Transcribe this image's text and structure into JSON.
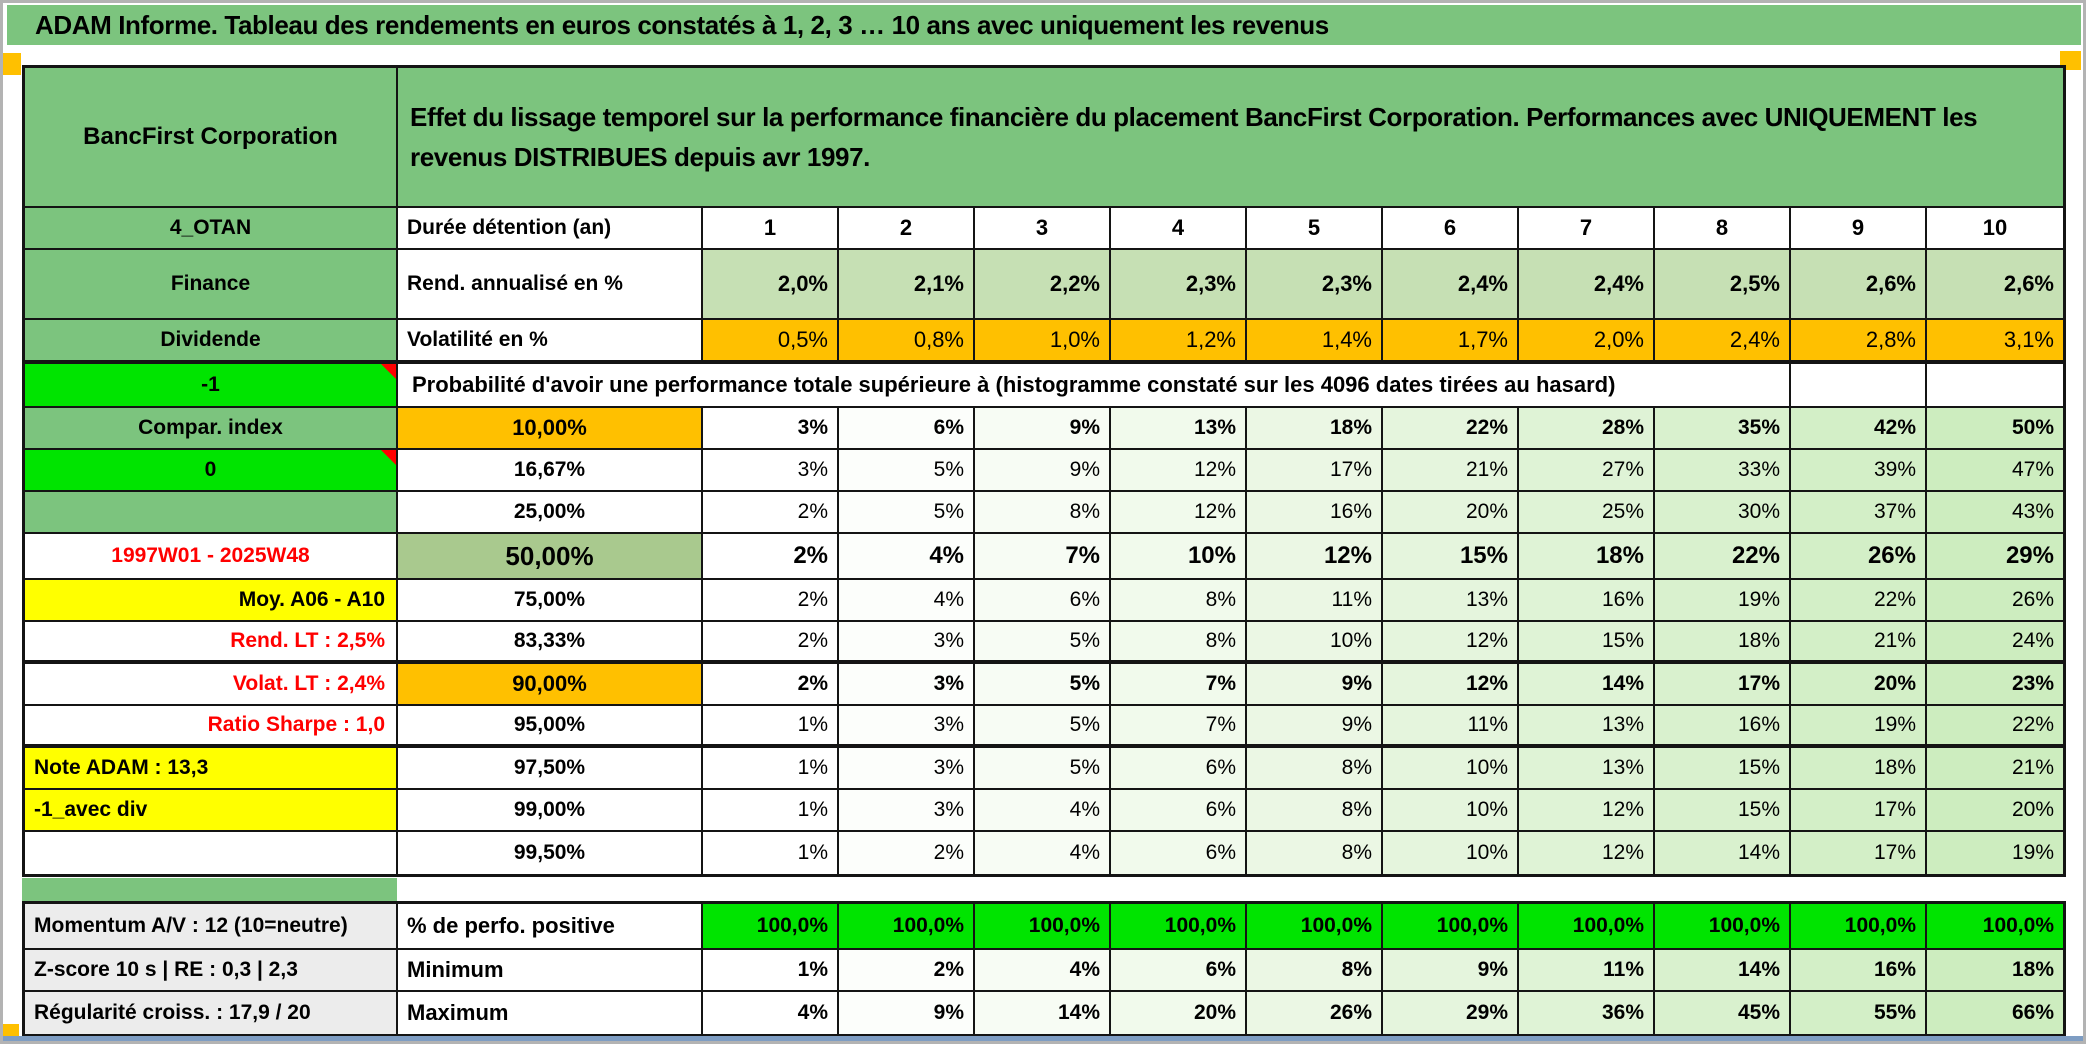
{
  "window": {
    "title": "ADAM Informe. Tableau des rendements en euros constatés à 1, 2, 3 … 10 ans avec uniquement les revenus"
  },
  "header": {
    "company": "BancFirst Corporation",
    "description": "Effet du lissage temporel sur la performance financière du placement BancFirst Corporation. Performances avec UNIQUEMENT les revenus DISTRIBUES depuis avr 1997."
  },
  "colors": {
    "header_green": "#7CC47E",
    "bright_green": "#00E400",
    "orange": "#FFC000",
    "yellow": "#FFFF00",
    "sage_green": "#A9C98E",
    "light_green": "#C6E0B4",
    "label_gray": "#ECECEC",
    "red_text": "#FF0000"
  },
  "table": {
    "duration_row": {
      "label": "4_OTAN",
      "param": "Durée détention (an)",
      "values": [
        "1",
        "2",
        "3",
        "4",
        "5",
        "6",
        "7",
        "8",
        "9",
        "10"
      ]
    },
    "yield_row": {
      "label": "Finance",
      "param": "Rend. annualisé en %",
      "values": [
        "2,0%",
        "2,1%",
        "2,2%",
        "2,3%",
        "2,3%",
        "2,4%",
        "2,4%",
        "2,5%",
        "2,6%",
        "2,6%"
      ]
    },
    "volatility_row": {
      "label": "Dividende",
      "param": "Volatilité en %",
      "values": [
        "0,5%",
        "0,8%",
        "1,0%",
        "1,2%",
        "1,4%",
        "1,7%",
        "2,0%",
        "2,4%",
        "2,8%",
        "3,1%"
      ]
    },
    "probability_banner": {
      "label": "-1",
      "has_note": true,
      "text": "Probabilité d'avoir une performance totale supérieure à (histogramme constaté sur les 4096 dates tirées au hasard)"
    },
    "probability_rows": [
      {
        "label": "Compar. index",
        "label_style": "green",
        "threshold": "10,00%",
        "threshold_style": "orange",
        "values_bold": true,
        "values": [
          "3%",
          "6%",
          "9%",
          "13%",
          "18%",
          "22%",
          "28%",
          "35%",
          "42%",
          "50%"
        ]
      },
      {
        "label": "0",
        "label_style": "bright",
        "has_note": true,
        "threshold": "16,67%",
        "values": [
          "3%",
          "5%",
          "9%",
          "12%",
          "17%",
          "21%",
          "27%",
          "33%",
          "39%",
          "47%"
        ]
      },
      {
        "label": "",
        "label_style": "green",
        "threshold": "25,00%",
        "values": [
          "2%",
          "5%",
          "8%",
          "12%",
          "16%",
          "20%",
          "25%",
          "30%",
          "37%",
          "43%"
        ]
      },
      {
        "label": "1997W01 - 2025W48",
        "label_style": "red-center",
        "threshold": "50,00%",
        "threshold_style": "sage",
        "values_bold": true,
        "big": true,
        "values": [
          "2%",
          "4%",
          "7%",
          "10%",
          "12%",
          "15%",
          "18%",
          "22%",
          "26%",
          "29%"
        ]
      },
      {
        "label": "Moy. A06 - A10",
        "label_style": "yellow-right",
        "threshold": "75,00%",
        "values": [
          "2%",
          "4%",
          "6%",
          "8%",
          "11%",
          "13%",
          "16%",
          "19%",
          "22%",
          "26%"
        ]
      },
      {
        "label": "Rend. LT :  2,5%",
        "label_style": "red-right",
        "threshold": "83,33%",
        "thick_bottom": true,
        "values": [
          "2%",
          "3%",
          "5%",
          "8%",
          "10%",
          "12%",
          "15%",
          "18%",
          "21%",
          "24%"
        ]
      },
      {
        "label": "Volat. LT :  2,4%",
        "label_style": "red-right",
        "threshold": "90,00%",
        "threshold_style": "orange",
        "values_bold": true,
        "values": [
          "2%",
          "3%",
          "5%",
          "7%",
          "9%",
          "12%",
          "14%",
          "17%",
          "20%",
          "23%"
        ]
      },
      {
        "label": "Ratio Sharpe :  1,0",
        "label_style": "red-right",
        "threshold": "95,00%",
        "thick_bottom": true,
        "values": [
          "1%",
          "3%",
          "5%",
          "7%",
          "9%",
          "11%",
          "13%",
          "16%",
          "19%",
          "22%"
        ]
      },
      {
        "label": "Note ADAM : 13,3",
        "label_style": "yellow-left",
        "threshold": "97,50%",
        "values": [
          "1%",
          "3%",
          "5%",
          "6%",
          "8%",
          "10%",
          "13%",
          "15%",
          "18%",
          "21%"
        ]
      },
      {
        "label": "-1_avec div",
        "label_style": "yellow-left",
        "threshold": "99,00%",
        "values": [
          "1%",
          "3%",
          "4%",
          "6%",
          "8%",
          "10%",
          "12%",
          "15%",
          "17%",
          "20%"
        ]
      },
      {
        "label": "",
        "label_style": "white",
        "threshold": "99,50%",
        "values": [
          "1%",
          "2%",
          "4%",
          "6%",
          "8%",
          "10%",
          "12%",
          "14%",
          "17%",
          "19%"
        ]
      }
    ],
    "summary_rows": [
      {
        "label": "Momentum A/V : 12 (10=neutre)",
        "param": "% de perfo. positive",
        "values_style": "bright",
        "values_bold": true,
        "values": [
          "100,0%",
          "100,0%",
          "100,0%",
          "100,0%",
          "100,0%",
          "100,0%",
          "100,0%",
          "100,0%",
          "100,0%",
          "100,0%"
        ]
      },
      {
        "label": "Z-score 10 s | RE : 0,3 | 2,3",
        "param": "Minimum",
        "values_bold": true,
        "values": [
          "1%",
          "2%",
          "4%",
          "6%",
          "8%",
          "9%",
          "11%",
          "14%",
          "16%",
          "18%"
        ]
      },
      {
        "label": "Régularité croiss. : 17,9 / 20",
        "param": "Maximum",
        "values_bold": true,
        "values": [
          "4%",
          "9%",
          "14%",
          "20%",
          "26%",
          "29%",
          "36%",
          "45%",
          "55%",
          "66%"
        ]
      }
    ]
  }
}
